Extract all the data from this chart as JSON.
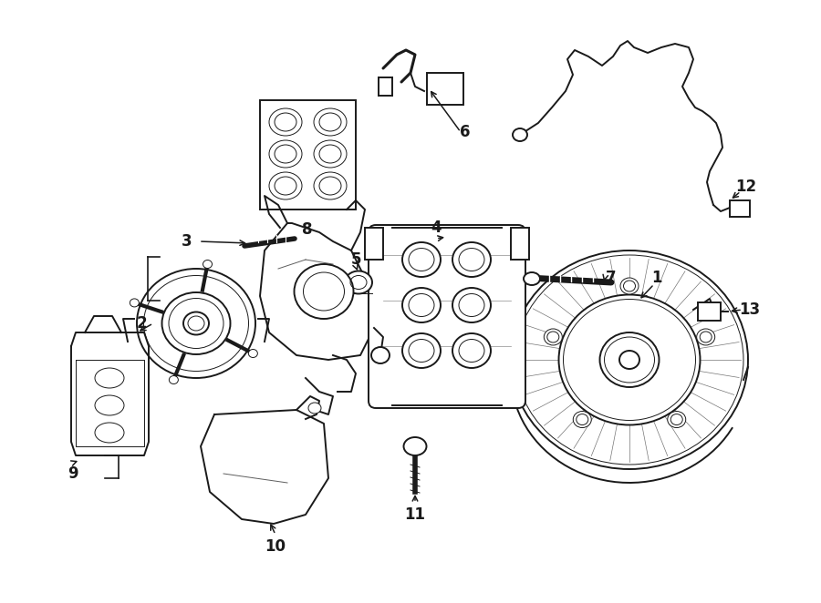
{
  "bg_color": "#ffffff",
  "line_color": "#1a1a1a",
  "lw": 1.4,
  "lw_thin": 0.7,
  "lw_thick": 2.2,
  "label_fs": 12,
  "fig_w": 9.0,
  "fig_h": 6.62,
  "dpi": 100
}
